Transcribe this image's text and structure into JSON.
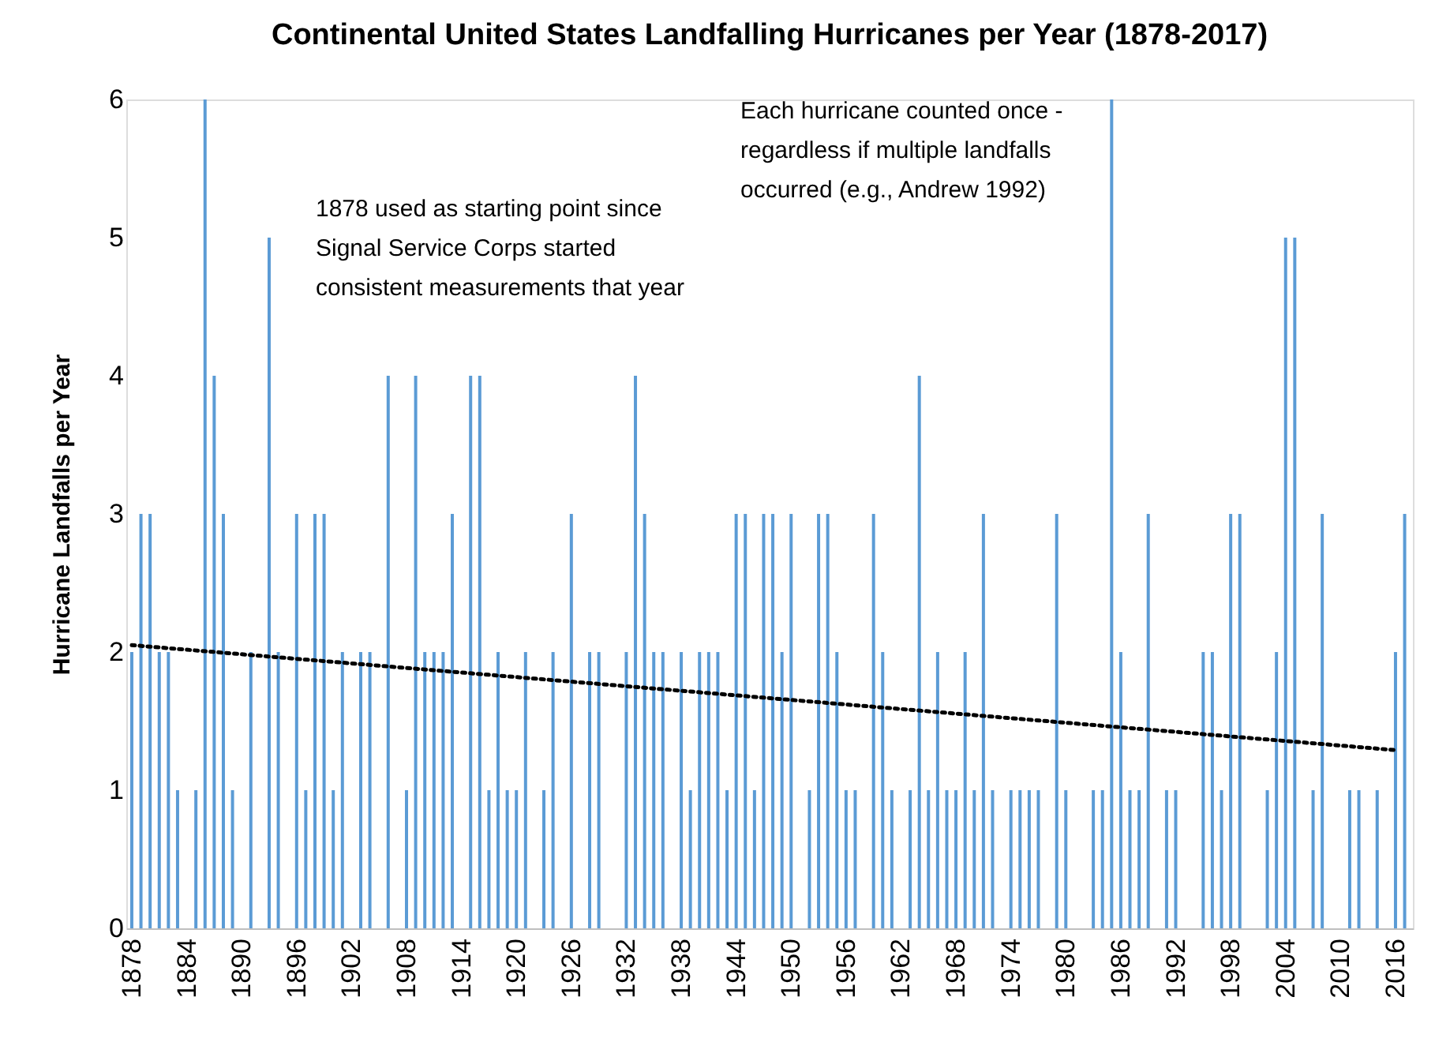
{
  "chart_data": {
    "type": "bar",
    "title": "Continental United States Landfalling Hurricanes per Year (1878-2017)",
    "ylabel": "Hurricane  Landfalls per Year",
    "annotations": [
      "1878 used as starting point since\nSignal Service Corps started\nconsistent measurements that year",
      "Each hurricane counted once -\nregardless if  multiple landfalls\noccurred  (e.g., Andrew 1992)"
    ],
    "xlim": [
      1877.4,
      2017.9
    ],
    "xticks": [
      1878,
      1884,
      1890,
      1896,
      1902,
      1908,
      1914,
      1920,
      1926,
      1932,
      1938,
      1944,
      1950,
      1956,
      1962,
      1968,
      1974,
      1980,
      1986,
      1992,
      1998,
      2004,
      2010,
      2016
    ],
    "ylim": [
      0,
      6
    ],
    "yticks": [
      0,
      1,
      2,
      3,
      4,
      5,
      6
    ],
    "grid": false,
    "legend": false,
    "series": [
      {
        "color": "#5b9bd5",
        "x": [
          1878,
          1879,
          1880,
          1881,
          1882,
          1883,
          1884,
          1885,
          1886,
          1887,
          1888,
          1889,
          1890,
          1891,
          1892,
          1893,
          1894,
          1895,
          1896,
          1897,
          1898,
          1899,
          1900,
          1901,
          1902,
          1903,
          1904,
          1905,
          1906,
          1907,
          1908,
          1909,
          1910,
          1911,
          1912,
          1913,
          1914,
          1915,
          1916,
          1917,
          1918,
          1919,
          1920,
          1921,
          1922,
          1923,
          1924,
          1925,
          1926,
          1927,
          1928,
          1929,
          1930,
          1931,
          1932,
          1933,
          1934,
          1935,
          1936,
          1937,
          1938,
          1939,
          1940,
          1941,
          1942,
          1943,
          1944,
          1945,
          1946,
          1947,
          1948,
          1949,
          1950,
          1951,
          1952,
          1953,
          1954,
          1955,
          1956,
          1957,
          1958,
          1959,
          1960,
          1961,
          1962,
          1963,
          1964,
          1965,
          1966,
          1967,
          1968,
          1969,
          1970,
          1971,
          1972,
          1973,
          1974,
          1975,
          1976,
          1977,
          1978,
          1979,
          1980,
          1981,
          1982,
          1983,
          1984,
          1985,
          1986,
          1987,
          1988,
          1989,
          1990,
          1991,
          1992,
          1993,
          1994,
          1995,
          1996,
          1997,
          1998,
          1999,
          2000,
          2001,
          2002,
          2003,
          2004,
          2005,
          2006,
          2007,
          2008,
          2009,
          2010,
          2011,
          2012,
          2013,
          2014,
          2015,
          2016,
          2017
        ],
        "values": [
          2,
          3,
          3,
          2,
          2,
          1,
          0,
          1,
          6,
          4,
          3,
          1,
          0,
          2,
          0,
          5,
          2,
          0,
          3,
          1,
          3,
          3,
          1,
          2,
          0,
          2,
          2,
          0,
          4,
          0,
          1,
          4,
          2,
          2,
          2,
          3,
          0,
          4,
          4,
          1,
          2,
          1,
          1,
          2,
          0,
          1,
          2,
          0,
          3,
          0,
          2,
          2,
          0,
          0,
          2,
          4,
          3,
          2,
          2,
          0,
          2,
          1,
          2,
          2,
          2,
          1,
          3,
          3,
          1,
          3,
          3,
          2,
          3,
          0,
          1,
          3,
          3,
          2,
          1,
          1,
          0,
          3,
          2,
          1,
          0,
          1,
          4,
          1,
          2,
          1,
          1,
          2,
          1,
          3,
          1,
          0,
          1,
          1,
          1,
          1,
          0,
          3,
          1,
          0,
          0,
          1,
          1,
          6,
          2,
          1,
          1,
          3,
          0,
          1,
          1,
          0,
          0,
          2,
          2,
          1,
          3,
          3,
          0,
          0,
          1,
          2,
          5,
          5,
          0,
          1,
          3,
          0,
          0,
          1,
          1,
          0,
          1,
          0,
          2,
          3
        ]
      },
      {
        "type": "line",
        "color": "#000000",
        "line_style": "dotted",
        "x": [
          1878,
          2016
        ],
        "values": [
          2.05,
          1.29
        ]
      }
    ]
  }
}
